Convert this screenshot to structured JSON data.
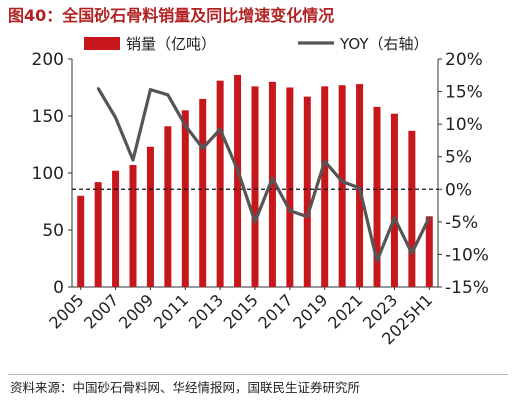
{
  "title": "图40：全国砂石骨料销量及同比增速变化情况",
  "source": "资料来源：中国砂石骨料网、华经情报网，国联民生证券研究所",
  "chart_data": {
    "type": "bar+line",
    "categories": [
      "2005",
      "2006",
      "2007",
      "2008",
      "2009",
      "2010",
      "2011",
      "2012",
      "2013",
      "2014",
      "2015",
      "2016",
      "2017",
      "2018",
      "2019",
      "2020",
      "2021",
      "2022",
      "2023",
      "2024",
      "2025H1"
    ],
    "x_tick_labels": [
      "2005",
      "2007",
      "2009",
      "2011",
      "2013",
      "2015",
      "2017",
      "2019",
      "2021",
      "2023",
      "2025H1"
    ],
    "series": [
      {
        "name": "销量（亿吨）",
        "type": "bar",
        "axis": "left",
        "color": "#c8171c",
        "values": [
          80,
          92,
          102,
          107,
          123,
          141,
          155,
          165,
          181,
          186,
          176,
          180,
          175,
          167,
          176,
          177,
          178,
          158,
          152,
          137,
          62
        ]
      },
      {
        "name": "YOY（右轴）",
        "type": "line",
        "axis": "right",
        "color": "#555555",
        "values": [
          null,
          15.5,
          11.0,
          4.5,
          15.3,
          14.5,
          9.8,
          6.3,
          9.2,
          3.0,
          -5.0,
          1.7,
          -3.3,
          -4.2,
          4.3,
          1.2,
          0.2,
          -11.0,
          -4.4,
          -9.8,
          -4.3
        ]
      }
    ],
    "y_left": {
      "min": 0,
      "max": 200,
      "ticks": [
        0,
        50,
        100,
        150,
        200
      ]
    },
    "y_right": {
      "min": -15,
      "max": 20,
      "ticks": [
        -15,
        -10,
        -5,
        0,
        5,
        10,
        15,
        20
      ],
      "unit": "%"
    },
    "reference_line": {
      "axis": "right",
      "value": 0,
      "style": "dashed"
    },
    "legend_position": "top",
    "grid": false
  }
}
